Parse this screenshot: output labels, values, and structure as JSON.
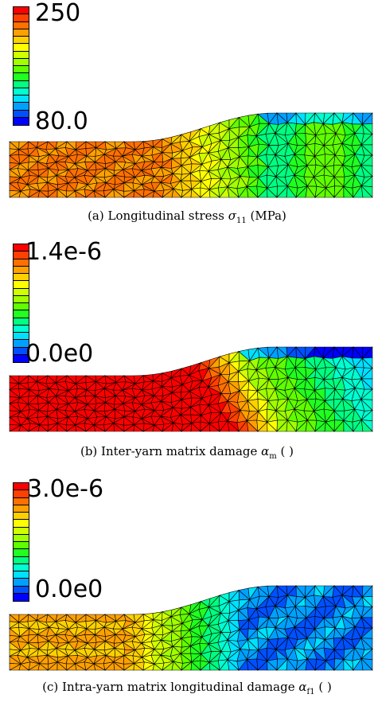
{
  "panels": [
    {
      "id": "a",
      "max_label": "250",
      "min_label": "80.0",
      "caption_prefix": "(a)  Longitudinal stress ",
      "caption_symbol": "σ",
      "caption_sub": "11",
      "caption_suffix": " (MPa)",
      "field": "stress",
      "colorbar_segments": 16
    },
    {
      "id": "b",
      "max_label": "1.4e-6",
      "min_label": "0.0e0",
      "caption_prefix": "(b)  Inter-yarn matrix damage ",
      "caption_symbol": "α",
      "caption_sub": "m",
      "caption_suffix": " ( )",
      "field": "inter_damage",
      "colorbar_segments": 16
    },
    {
      "id": "c",
      "max_label": "3.0e-6",
      "min_label": "0.0e0",
      "caption_prefix": "(c)  Intra-yarn matrix longitudinal damage ",
      "caption_symbol": "α",
      "caption_sub": "f1",
      "caption_suffix": " ( )",
      "field": "intra_damage",
      "colorbar_segments": 16
    }
  ],
  "colormap": [
    "#0000ff",
    "#0050ff",
    "#00a0ff",
    "#00e0ff",
    "#00ffd0",
    "#00ff80",
    "#20ff20",
    "#60ff00",
    "#a0ff00",
    "#d0ff00",
    "#ffff00",
    "#ffd000",
    "#ffa000",
    "#ff7000",
    "#ff4000",
    "#ff0000"
  ]
}
